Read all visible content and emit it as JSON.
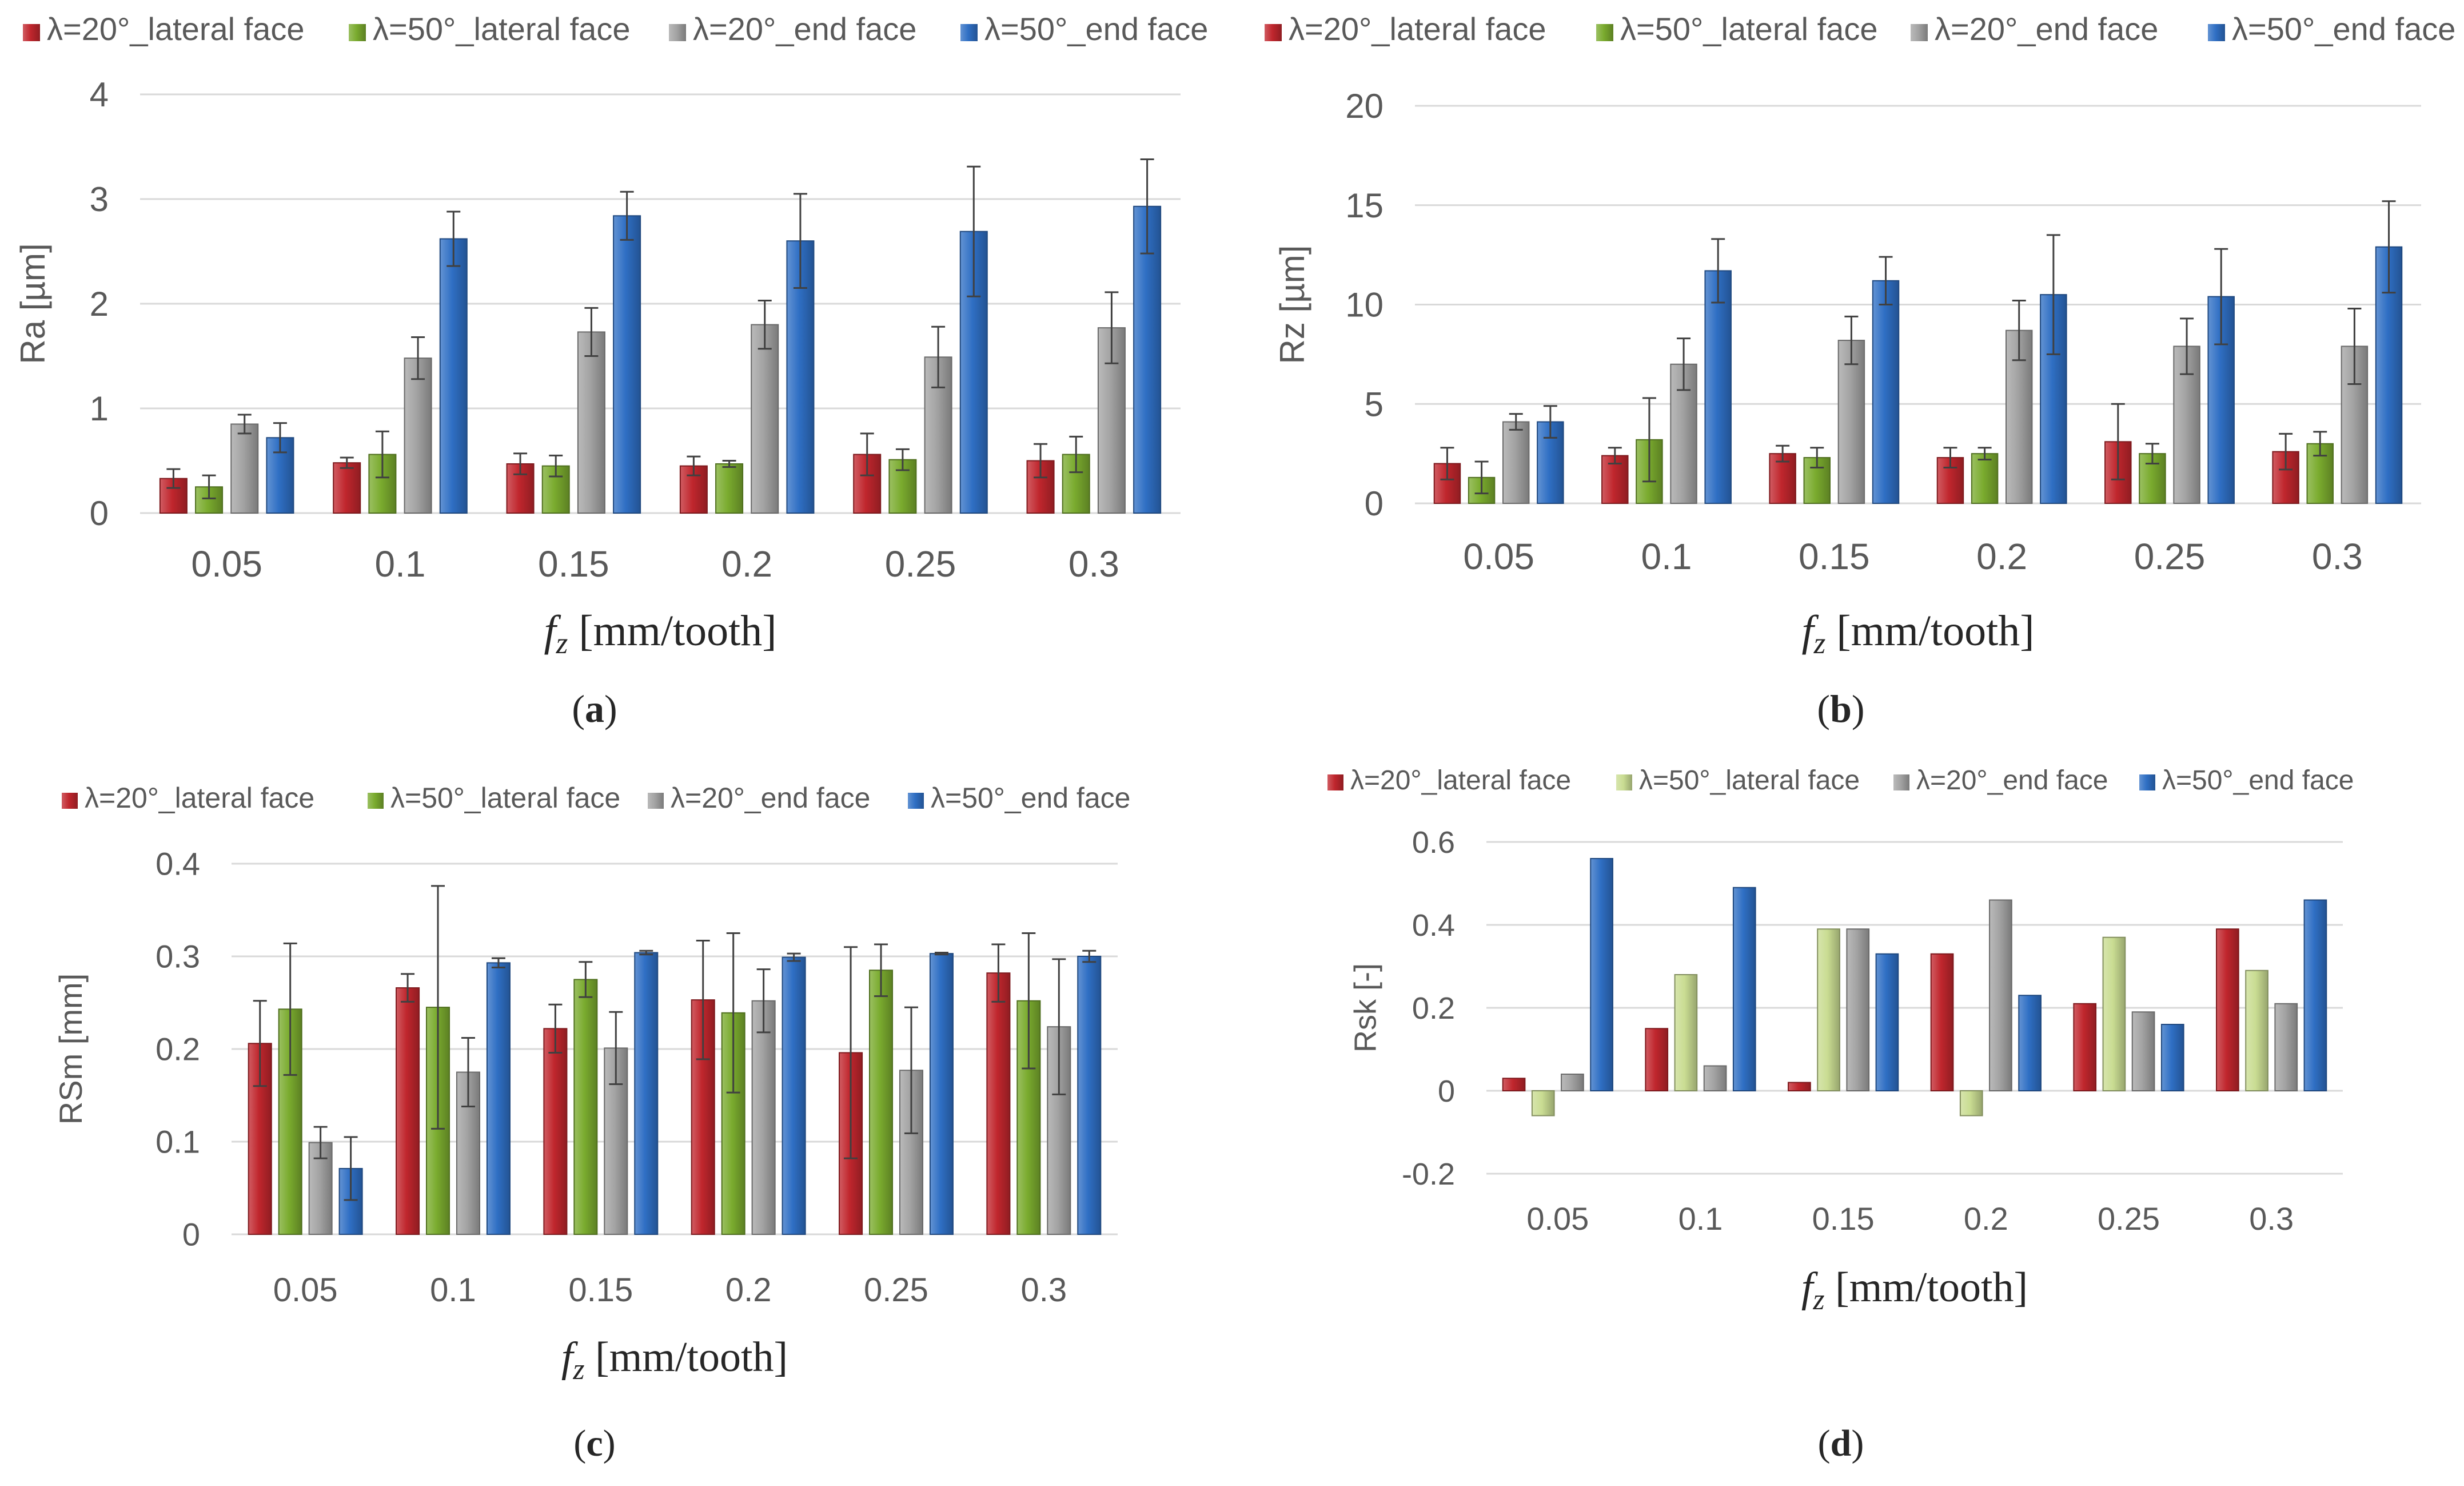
{
  "figure": {
    "series_colors": {
      "red": "#c0262d",
      "green": "#7aab2e",
      "lightgreen": "#c9dc92",
      "gray": "#a3a3a3",
      "blue": "#2f6fc4"
    },
    "gridline_color": "#d9d9d9",
    "text_color": "#595959",
    "label_color": "#262626"
  },
  "chart_data": [
    {
      "id": "a",
      "type": "bar",
      "panel_label": "(a)",
      "panel_letter": "a",
      "xlabel_var": "f",
      "xlabel_sub": "z",
      "xlabel_unit": " [mm/tooth]",
      "ylabel": "Ra [µm]",
      "categories": [
        "0.05",
        "0.1",
        "0.15",
        "0.2",
        "0.25",
        "0.3"
      ],
      "ylim": [
        0,
        4
      ],
      "yticks": [
        0,
        1,
        2,
        3,
        4
      ],
      "series": [
        {
          "name": "λ=20°_lateral face",
          "color_key": "red",
          "values": [
            0.33,
            0.48,
            0.47,
            0.45,
            0.56,
            0.5
          ],
          "errors": [
            0.09,
            0.05,
            0.1,
            0.09,
            0.2,
            0.16
          ]
        },
        {
          "name": "λ=50°_lateral face",
          "color_key": "green",
          "values": [
            0.25,
            0.56,
            0.45,
            0.47,
            0.51,
            0.56
          ],
          "errors": [
            0.11,
            0.22,
            0.1,
            0.03,
            0.1,
            0.17
          ]
        },
        {
          "name": "λ=20°_end face",
          "color_key": "gray",
          "values": [
            0.85,
            1.48,
            1.73,
            1.8,
            1.49,
            1.77
          ],
          "errors": [
            0.09,
            0.2,
            0.23,
            0.23,
            0.29,
            0.34
          ]
        },
        {
          "name": "λ=50°_end face",
          "color_key": "blue",
          "values": [
            0.72,
            2.62,
            2.84,
            2.6,
            2.69,
            2.93
          ],
          "errors": [
            0.14,
            0.26,
            0.23,
            0.45,
            0.62,
            0.45
          ]
        }
      ]
    },
    {
      "id": "b",
      "type": "bar",
      "panel_label": "(b)",
      "panel_letter": "b",
      "xlabel_var": "f",
      "xlabel_sub": "z",
      "xlabel_unit": " [mm/tooth]",
      "ylabel": "Rz [µm]",
      "categories": [
        "0.05",
        "0.1",
        "0.15",
        "0.2",
        "0.25",
        "0.3"
      ],
      "ylim": [
        0,
        20
      ],
      "yticks": [
        0,
        5,
        10,
        15,
        20
      ],
      "series": [
        {
          "name": "λ=20°_lateral face",
          "color_key": "red",
          "values": [
            2.0,
            2.4,
            2.5,
            2.3,
            3.1,
            2.6
          ],
          "errors": [
            0.8,
            0.4,
            0.4,
            0.5,
            1.9,
            0.9
          ]
        },
        {
          "name": "λ=50°_lateral face",
          "color_key": "green",
          "values": [
            1.3,
            3.2,
            2.3,
            2.5,
            2.5,
            3.0
          ],
          "errors": [
            0.8,
            2.1,
            0.5,
            0.3,
            0.5,
            0.6
          ]
        },
        {
          "name": "λ=20°_end face",
          "color_key": "gray",
          "values": [
            4.1,
            7.0,
            8.2,
            8.7,
            7.9,
            7.9
          ],
          "errors": [
            0.4,
            1.3,
            1.2,
            1.5,
            1.4,
            1.9
          ]
        },
        {
          "name": "λ=50°_end face",
          "color_key": "blue",
          "values": [
            4.1,
            11.7,
            11.2,
            10.5,
            10.4,
            12.9
          ],
          "errors": [
            0.8,
            1.6,
            1.2,
            3.0,
            2.4,
            2.3
          ]
        }
      ]
    },
    {
      "id": "c",
      "type": "bar",
      "panel_label": "(c)",
      "panel_letter": "c",
      "xlabel_var": "f",
      "xlabel_sub": "z",
      "xlabel_unit": " [mm/tooth]",
      "ylabel": "RSm [mm]",
      "categories": [
        "0.05",
        "0.1",
        "0.15",
        "0.2",
        "0.25",
        "0.3"
      ],
      "ylim": [
        0,
        0.4
      ],
      "yticks": [
        0,
        0.1,
        0.2,
        0.3,
        0.4
      ],
      "series": [
        {
          "name": "λ=20°_lateral face",
          "color_key": "red",
          "values": [
            0.206,
            0.266,
            0.222,
            0.253,
            0.196,
            0.282
          ],
          "errors": [
            0.046,
            0.015,
            0.026,
            0.064,
            0.114,
            0.031
          ]
        },
        {
          "name": "λ=50°_lateral face",
          "color_key": "green",
          "values": [
            0.243,
            0.245,
            0.275,
            0.239,
            0.285,
            0.252
          ],
          "errors": [
            0.071,
            0.131,
            0.019,
            0.086,
            0.028,
            0.073
          ]
        },
        {
          "name": "λ=20°_end face",
          "color_key": "gray",
          "values": [
            0.099,
            0.175,
            0.201,
            0.252,
            0.177,
            0.224
          ],
          "errors": [
            0.017,
            0.037,
            0.039,
            0.034,
            0.068,
            0.073
          ]
        },
        {
          "name": "λ=50°_end face",
          "color_key": "blue",
          "values": [
            0.071,
            0.293,
            0.304,
            0.299,
            0.303,
            0.3
          ],
          "errors": [
            0.034,
            0.005,
            0.002,
            0.004,
            0.001,
            0.006
          ]
        }
      ]
    },
    {
      "id": "d",
      "type": "bar",
      "panel_label": "(d)",
      "panel_letter": "d",
      "xlabel_var": "f",
      "xlabel_sub": "z",
      "xlabel_unit": " [mm/tooth]",
      "ylabel": "Rsk [-]",
      "categories": [
        "0.05",
        "0.1",
        "0.15",
        "0.2",
        "0.25",
        "0.3"
      ],
      "ylim": [
        -0.2,
        0.6
      ],
      "yticks": [
        -0.2,
        0,
        0.2,
        0.4,
        0.6
      ],
      "series": [
        {
          "name": "λ=20°_lateral face",
          "color_key": "red",
          "values": [
            0.03,
            0.15,
            0.02,
            0.33,
            0.21,
            0.39
          ]
        },
        {
          "name": "λ=50°_lateral face",
          "color_key": "lightgreen",
          "values": [
            -0.06,
            0.28,
            0.39,
            -0.06,
            0.37,
            0.29
          ]
        },
        {
          "name": "λ=20°_end face",
          "color_key": "gray",
          "values": [
            0.04,
            0.06,
            0.39,
            0.46,
            0.19,
            0.21
          ]
        },
        {
          "name": "λ=50°_end face",
          "color_key": "blue",
          "values": [
            0.56,
            0.49,
            0.33,
            0.23,
            0.16,
            0.46
          ]
        }
      ]
    }
  ]
}
